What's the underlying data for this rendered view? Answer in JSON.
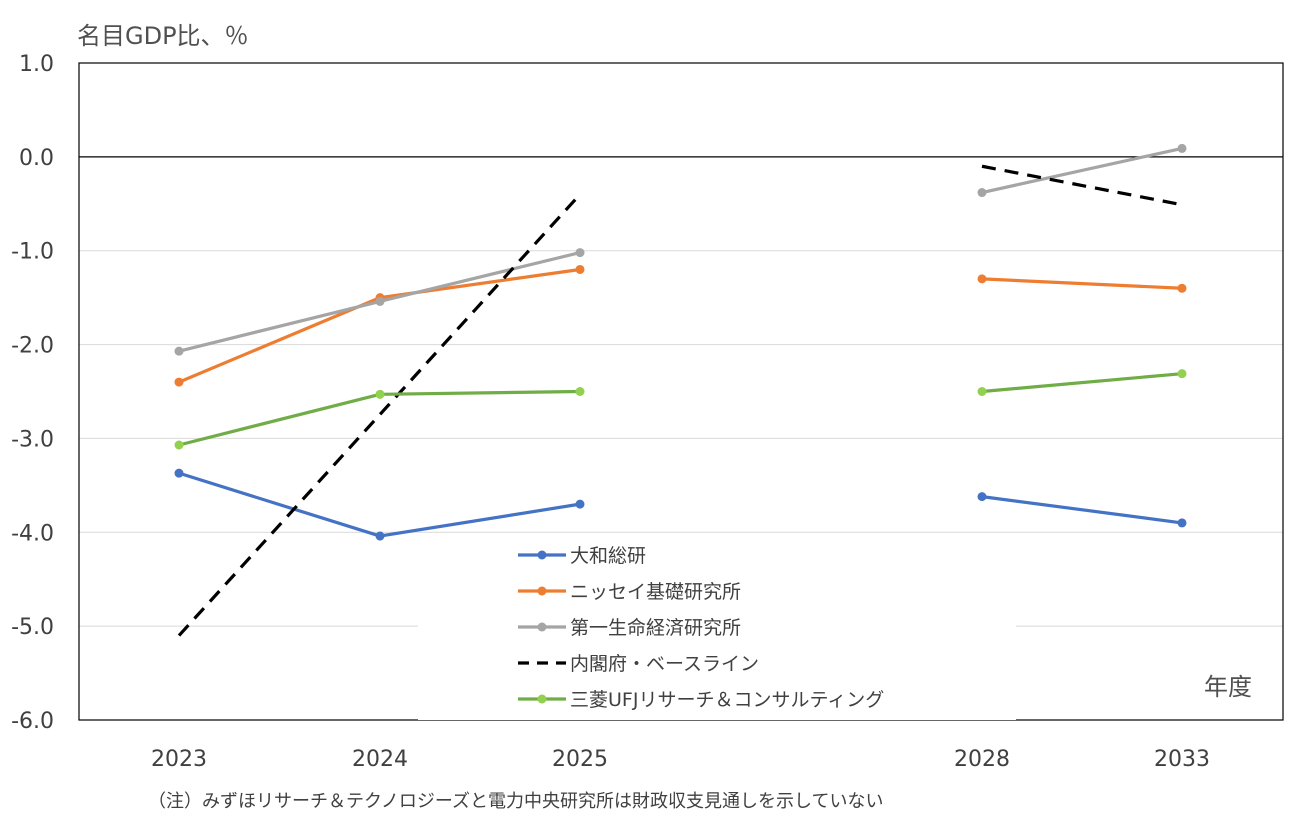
{
  "chart_data": {
    "type": "line",
    "ylabel": "名目GDP比、％",
    "xlabel": "年度",
    "note": "（注）みずほリサーチ＆テクノロジーズと電力中央研究所は財政収支見通しを示していない",
    "ylim": [
      -6.0,
      1.0
    ],
    "y_ticks": [
      "1.0",
      "0.0",
      "-1.0",
      "-2.0",
      "-3.0",
      "-4.0",
      "-5.0",
      "-6.0"
    ],
    "categories": [
      "2023",
      "2024",
      "2025",
      "2028",
      "2033"
    ],
    "series": [
      {
        "name": "大和総研",
        "color": "#4472C4",
        "dash": false,
        "markers": true,
        "segments": [
          [
            [
              0,
              -3.37
            ],
            [
              1,
              -4.04
            ],
            [
              2,
              -3.7
            ]
          ],
          [
            [
              3,
              -3.62
            ],
            [
              4,
              -3.9
            ]
          ]
        ]
      },
      {
        "name": "ニッセイ基礎研究所",
        "color": "#ED7D31",
        "dash": false,
        "markers": true,
        "segments": [
          [
            [
              0,
              -2.4
            ],
            [
              1,
              -1.5
            ],
            [
              2,
              -1.2
            ]
          ],
          [
            [
              3,
              -1.3
            ],
            [
              4,
              -1.4
            ]
          ]
        ]
      },
      {
        "name": "第一生命経済研究所",
        "color": "#A5A5A5",
        "dash": false,
        "markers": true,
        "segments": [
          [
            [
              0,
              -2.07
            ],
            [
              1,
              -1.54
            ],
            [
              2,
              -1.02
            ]
          ],
          [
            [
              3,
              -0.38
            ],
            [
              4,
              0.09
            ]
          ]
        ]
      },
      {
        "name": "内閣府・ベースライン",
        "color": "#000000",
        "dash": true,
        "markers": false,
        "segments": [
          [
            [
              0,
              -5.1
            ],
            [
              2,
              -0.4
            ]
          ],
          [
            [
              3,
              -0.1
            ],
            [
              4,
              -0.51
            ]
          ]
        ]
      },
      {
        "name": "三菱UFJリサーチ＆コンサルティング",
        "color": "#70AD47",
        "dash": false,
        "markers": true,
        "segments": [
          [
            [
              0,
              -3.07
            ],
            [
              1,
              -2.53
            ],
            [
              2,
              -2.5
            ]
          ],
          [
            [
              3,
              -2.5
            ],
            [
              4,
              -2.31
            ]
          ]
        ]
      }
    ],
    "grid": true,
    "legend_position": "bottom-center inside plot"
  }
}
